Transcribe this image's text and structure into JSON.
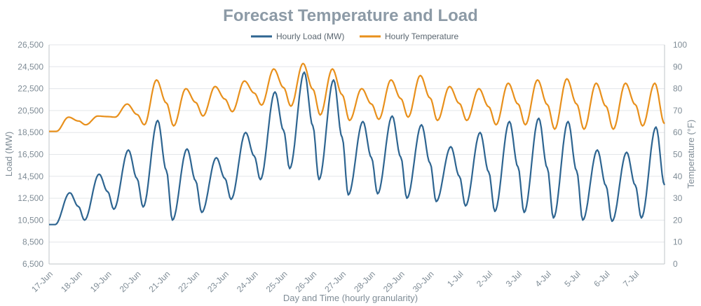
{
  "chart_data": {
    "type": "line",
    "title": "Forecast Temperature and Load",
    "xlabel": "Day and Time (hourly granularity)",
    "ylabel_left": "Load (MW)",
    "ylabel_right": "Temperature (°F)",
    "ylim_left": [
      6500,
      26500
    ],
    "ylim_right": [
      0,
      100
    ],
    "yticks_left": [
      "6,500",
      "8,500",
      "10,500",
      "12,500",
      "14,500",
      "16,500",
      "18,500",
      "20,500",
      "22,500",
      "24,500",
      "26,500"
    ],
    "yticks_right": [
      "0",
      "10",
      "20",
      "30",
      "40",
      "50",
      "60",
      "70",
      "80",
      "90",
      "100"
    ],
    "x_categories": [
      "17-Jun",
      "18-Jun",
      "19-Jun",
      "20-Jun",
      "21-Jun",
      "22-Jun",
      "23-Jun",
      "24-Jun",
      "25-Jun",
      "26-Jun",
      "27-Jun",
      "28-Jun",
      "29-Jun",
      "30-Jun",
      "1-Jul",
      "2-Jul",
      "3-Jul",
      "4-Jul",
      "5-Jul",
      "6-Jul",
      "7-Jul"
    ],
    "grid": true,
    "legend_position": "top-center",
    "series": [
      {
        "name": "Hourly Load (MW)",
        "axis": "left",
        "color": "#2e6591",
        "daily_min": [
          10100,
          10500,
          11500,
          11700,
          10500,
          11200,
          12400,
          14200,
          15200,
          14200,
          12800,
          12900,
          12500,
          12200,
          11800,
          11300,
          11200,
          10700,
          10500,
          10400,
          10700
        ],
        "daily_peak": [
          13000,
          14700,
          16900,
          19600,
          17000,
          16200,
          18500,
          22200,
          24000,
          23300,
          19500,
          20000,
          19200,
          17200,
          18500,
          19500,
          19800,
          19500,
          16900,
          16700,
          19000
        ]
      },
      {
        "name": "Hourly Temperature",
        "axis": "right",
        "color": "#e8901c",
        "daily_min": [
          60.5,
          63.5,
          67,
          63.5,
          63,
          67.5,
          69.5,
          72.5,
          72,
          68,
          65.5,
          66,
          67,
          65.5,
          65.5,
          63.5,
          63.5,
          61.5,
          61.5,
          61.5,
          63
        ],
        "daily_peak": [
          67,
          67.5,
          73,
          84,
          80,
          81,
          83.5,
          89,
          91.5,
          89,
          80,
          84,
          86,
          81,
          80,
          82.5,
          84,
          84.5,
          82.5,
          82.5,
          82.5
        ]
      }
    ],
    "final_load": 13700,
    "final_temperature": 64
  }
}
